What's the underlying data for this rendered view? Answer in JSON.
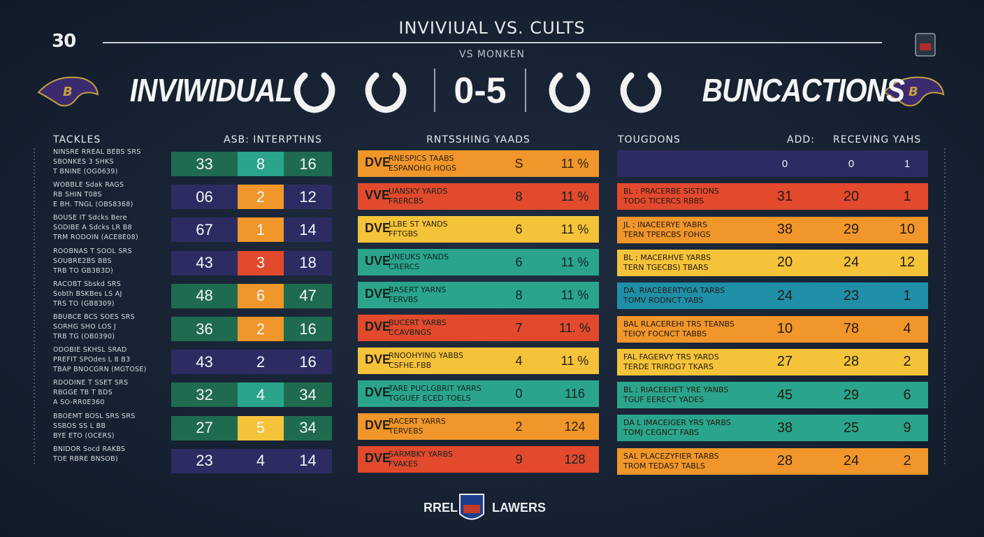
{
  "header": {
    "logo": "30",
    "title": "INVIVIUAL VS. CULTS",
    "subtitle": "VS MONKEN",
    "team_left": "INVIWIDUAL",
    "score": "0-5",
    "team_right": "BUNCACTIONS"
  },
  "tackles": {
    "title": "TACKLES",
    "header": "ASB: INTERPTHNS",
    "rows": [
      {
        "lines": [
          "NINSRE  RREAL  BEBS  SRS",
          "SBONKES  3  SHKS",
          "T BNINE  (OG0639)"
        ],
        "values": [
          "33",
          "8",
          "16"
        ]
      },
      {
        "lines": [
          "WOBBLE   Sdak  RAGS",
          "RB  SHIN  T08S",
          "E BH. TNGL  (OBS8368)"
        ],
        "values": [
          "06",
          "2",
          "12"
        ]
      },
      {
        "lines": [
          "BOUSE IT  Sdcks  Bere",
          "SODIBE  A  Sdcks  LR  B8",
          "TRM  RODOIN  (ACE8E08)"
        ],
        "values": [
          "67",
          "1",
          "14"
        ]
      },
      {
        "lines": [
          "ROOBNAS  T  SOOL  SRS",
          "SOUBRE2BS   BBS",
          "TRB  TO  GB3B3D)"
        ],
        "values": [
          "43",
          "3",
          "18"
        ]
      },
      {
        "lines": [
          "RACOBT  Sbskd  SRS",
          "Sobth  BSKBes  LS  AJ",
          "TRS  TO  (GB8309)"
        ],
        "values": [
          "48",
          "6",
          "47"
        ]
      },
      {
        "lines": [
          "BBUBCE  BCS  SOES  SRS",
          "SORHG  SHO  LOS  J",
          "TRB  TG  (OB0390)"
        ],
        "values": [
          "36",
          "2",
          "16"
        ]
      },
      {
        "lines": [
          "ODOBIE  SKHSL  SRAD",
          "PREFIT  SPOdes  L  8  B3",
          "TBAP  BNOCGRN  (MGTOSE)"
        ],
        "values": [
          "43",
          "2",
          "16"
        ]
      },
      {
        "lines": [
          "RDODINE  T  SSET  SRS",
          "RBGGE  TB  T  BDS",
          "A  SO-RR0E360"
        ],
        "values": [
          "32",
          "4",
          "34"
        ]
      },
      {
        "lines": [
          "BBOEMT  BOSL  SRS  SRS",
          "SSBOS  SS  L  BB",
          "BYE  ETO  (OCERS)"
        ],
        "values": [
          "27",
          "5",
          "34"
        ]
      },
      {
        "lines": [
          "BNIDOR  Socd  RAKBS",
          "TOE  RBRE  BNSOB)"
        ],
        "values": [
          "23",
          "4",
          "14"
        ]
      }
    ]
  },
  "rushing": {
    "title": "RNTSSHING YAADS",
    "rows": [
      {
        "tag": "DVE",
        "lines": [
          "RNESPICS TAABS",
          "ESPANOHG HOGS"
        ],
        "value": "S",
        "percent": "11 %"
      },
      {
        "tag": "VVE",
        "lines": [
          "UANSKY YARDS",
          "FRERCBS"
        ],
        "value": "8",
        "percent": "11 %"
      },
      {
        "tag": "DVE",
        "lines": [
          "LLBE ST YANDS",
          "FFTGBS"
        ],
        "value": "6",
        "percent": "11 %"
      },
      {
        "tag": "UVE",
        "lines": [
          "UNEUKS YANDS",
          "CRERCS"
        ],
        "value": "6",
        "percent": "11 %"
      },
      {
        "tag": "DVE",
        "lines": [
          "BASERT YARNS",
          "FERVBS"
        ],
        "value": "8",
        "percent": "11 %"
      },
      {
        "tag": "DVE",
        "lines": [
          "BUCERT YARBS",
          "CCAVBNGS"
        ],
        "value": "7",
        "percent": "11. %"
      },
      {
        "tag": "DVE",
        "lines": [
          "RNOOHYING YABBS",
          "CSFHE.FBB"
        ],
        "value": "4",
        "percent": "11 %"
      },
      {
        "tag": "DVE",
        "lines": [
          "TARE PUCLGBRIT YARRS",
          "TGGUEF ECED TOELS"
        ],
        "value": "0",
        "percent": "116"
      },
      {
        "tag": "DVE",
        "lines": [
          "RACERT YARRS",
          "TERVEBS"
        ],
        "value": "2",
        "percent": "124"
      },
      {
        "tag": "DVE",
        "lines": [
          "SARMBKY YARBS",
          "FVAKES"
        ],
        "value": "9",
        "percent": "128"
      }
    ]
  },
  "receiving": {
    "title": "TOUGDONS",
    "header_mid": "ADD:",
    "header_right": "RECEVING YAHS",
    "rows": [
      {
        "lines": [],
        "values": [
          "0",
          "0",
          "1"
        ]
      },
      {
        "lines": [
          "BL : PRACERBE SISTIONS",
          "TODG TICERCS RBBS"
        ],
        "values": [
          "31",
          "20",
          "1"
        ]
      },
      {
        "lines": [
          "JL ; INACEERYE YABRS",
          "TERN TPERCBS FOHGS"
        ],
        "values": [
          "38",
          "29",
          "10"
        ]
      },
      {
        "lines": [
          "BL ; MACERHVE YARBS",
          "TERN TGECBS) TBARS"
        ],
        "values": [
          "20",
          "24",
          "12"
        ]
      },
      {
        "lines": [
          "DA. RIACEBERTYGA TARBS",
          "TOMV RODNCT YABS"
        ],
        "values": [
          "24",
          "23",
          "1"
        ]
      },
      {
        "lines": [
          "BAL RLACEREHI TRS TEANBS",
          "TEIOY FOCNCT TABBS"
        ],
        "values": [
          "10",
          "78",
          "4"
        ]
      },
      {
        "lines": [
          "FAL FAGERVY TRS YARDS",
          "TERDE TRIRDG7 TKARS"
        ],
        "values": [
          "27",
          "28",
          "2"
        ]
      },
      {
        "lines": [
          "BL ; RIACEEHET YRE YANBS",
          "TGUF EERECT YADES"
        ],
        "values": [
          "45",
          "29",
          "6"
        ]
      },
      {
        "lines": [
          "DA L IMACEIGER YRS YARBS",
          "TOMJ CEGNCT FABS"
        ],
        "values": [
          "38",
          "25",
          "9"
        ]
      },
      {
        "lines": [
          "SAL PLACEZYFIER TARBS",
          "TROM TEDAS7 TABLS"
        ],
        "values": [
          "28",
          "24",
          "2"
        ]
      }
    ]
  },
  "footer": {
    "left": "RREL",
    "right": "LAWERS"
  }
}
